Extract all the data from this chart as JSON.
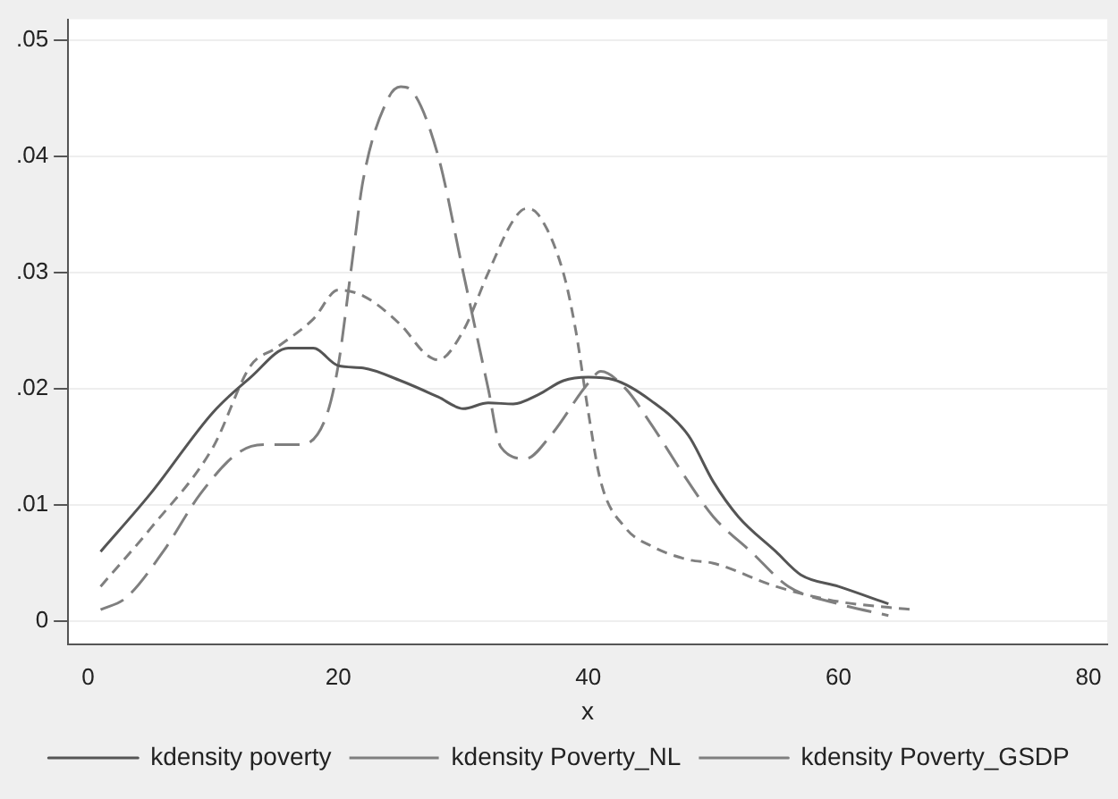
{
  "chart_data": {
    "type": "line",
    "xlabel": "x",
    "xlim": [
      -1.6,
      81.5
    ],
    "ylim": [
      -0.002,
      0.0518
    ],
    "xticks": [
      0,
      20,
      40,
      60,
      80
    ],
    "yticks": [
      0,
      {
        "value": 0.01,
        "label": ".01"
      },
      {
        "value": 0.02,
        "label": ".02"
      },
      {
        "value": 0.03,
        "label": ".03"
      },
      {
        "value": 0.04,
        "label": ".04"
      },
      {
        "value": 0.05,
        "label": ".05"
      }
    ],
    "grid": "y",
    "legend": "bottom",
    "marker": "none",
    "series": [
      {
        "name": "kdensity poverty",
        "color": "#555555",
        "line_style": "solid",
        "x": [
          1,
          5,
          10,
          13,
          16,
          18,
          20,
          22,
          25,
          28,
          30,
          32,
          34,
          36,
          38,
          40,
          42,
          45,
          48,
          50,
          52,
          55,
          57,
          60,
          64
        ],
        "values": [
          0.006,
          0.011,
          0.018,
          0.021,
          0.0235,
          0.0235,
          0.022,
          0.0218,
          0.0207,
          0.0193,
          0.0183,
          0.0188,
          0.0187,
          0.0195,
          0.0207,
          0.021,
          0.0208,
          0.019,
          0.016,
          0.012,
          0.009,
          0.006,
          0.004,
          0.003,
          0.0015
        ]
      },
      {
        "name": "kdensity Poverty_NL",
        "color": "#7f7f7f",
        "line_style": "dashed",
        "x": [
          1,
          5,
          10,
          13,
          15,
          18,
          20,
          22,
          25,
          27,
          28,
          30,
          32,
          34,
          35,
          36,
          38,
          39,
          40,
          41,
          43,
          45,
          48,
          50,
          55,
          60,
          64,
          66
        ],
        "values": [
          0.003,
          0.008,
          0.015,
          0.022,
          0.0235,
          0.026,
          0.0285,
          0.028,
          0.0255,
          0.023,
          0.0225,
          0.025,
          0.03,
          0.0345,
          0.0355,
          0.035,
          0.03,
          0.025,
          0.018,
          0.012,
          0.008,
          0.0065,
          0.0053,
          0.005,
          0.003,
          0.0017,
          0.0012,
          0.001
        ]
      },
      {
        "name": "kdensity Poverty_GSDP",
        "color": "#7f7f7f",
        "line_style": "longdash",
        "x": [
          1,
          3,
          6,
          9,
          12,
          14,
          17,
          19,
          20,
          21,
          22,
          24,
          25,
          26,
          28,
          30,
          32,
          33,
          35,
          37,
          40,
          41,
          43,
          45,
          48,
          50,
          53,
          56,
          60,
          64
        ],
        "values": [
          0.001,
          0.002,
          0.006,
          0.011,
          0.0145,
          0.0152,
          0.0152,
          0.0175,
          0.022,
          0.03,
          0.038,
          0.045,
          0.046,
          0.0455,
          0.04,
          0.03,
          0.02,
          0.015,
          0.014,
          0.016,
          0.0205,
          0.0215,
          0.02,
          0.017,
          0.012,
          0.009,
          0.006,
          0.003,
          0.0015,
          0.0005
        ]
      }
    ]
  }
}
